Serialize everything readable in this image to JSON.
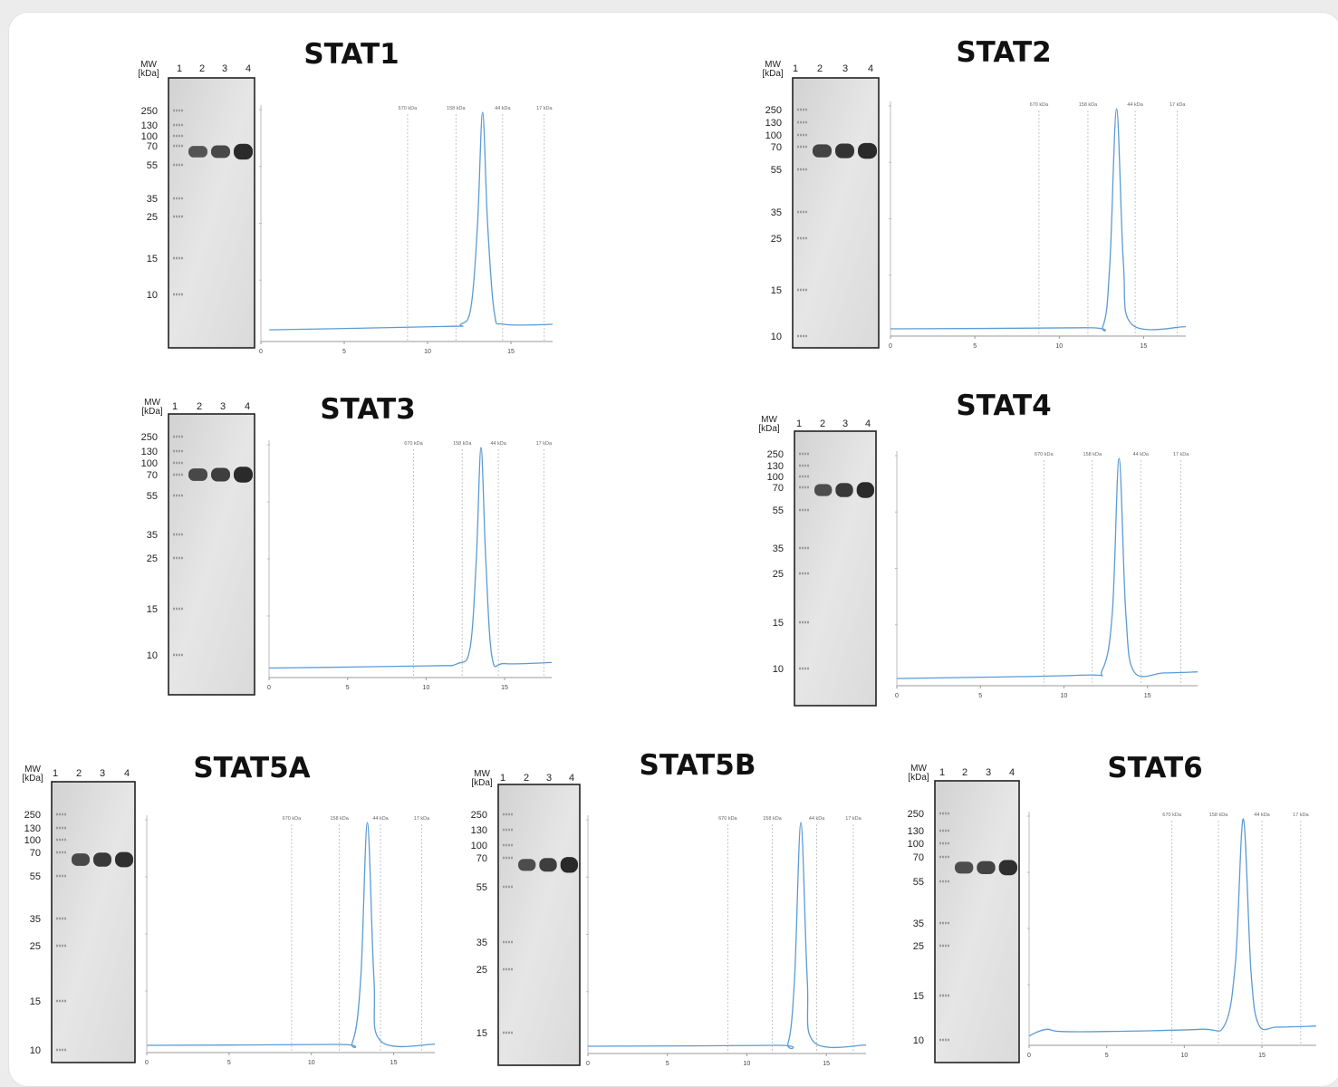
{
  "colors": {
    "trace": "#5b9bd5",
    "marker_line": "#9a9a9a",
    "gel_border": "#222222",
    "gel_bg": "#dcdcdc",
    "kda_label": "#c0504d",
    "card_bg": "#ffffff"
  },
  "gel_labels": {
    "mw": "MW",
    "kda": "[kDa]",
    "lanes": [
      "1",
      "2",
      "3",
      "4"
    ]
  },
  "chart_data": [
    {
      "type": "line",
      "title": "STAT1",
      "x_ticks": [
        "0",
        "5",
        "10",
        "15"
      ],
      "xlim": [
        0,
        17.5
      ],
      "markers": [
        {
          "label": "670 kDa",
          "x": 8.8
        },
        {
          "label": "158 kDa",
          "x": 11.7
        },
        {
          "label": "44 kDa",
          "x": 14.5
        },
        {
          "label": "17 kDa",
          "x": 17.0
        }
      ],
      "series": [
        {
          "points": [
            [
              0.5,
              0.02
            ],
            [
              11.0,
              0.035
            ],
            [
              12.0,
              0.045
            ],
            [
              12.6,
              0.12
            ],
            [
              13.0,
              0.5
            ],
            [
              13.3,
              1.0
            ],
            [
              13.6,
              0.5
            ],
            [
              14.0,
              0.1
            ],
            [
              14.6,
              0.045
            ],
            [
              17.5,
              0.045
            ]
          ]
        }
      ],
      "gel": {
        "ladder": [
          "250",
          "130",
          "100",
          "70",
          "55",
          "35",
          "25",
          "15",
          "10"
        ],
        "band_mw": 65,
        "band_intensity": [
          0.55,
          0.65,
          0.95
        ]
      }
    },
    {
      "type": "line",
      "title": "STAT2",
      "x_ticks": [
        "0",
        "5",
        "10",
        "15"
      ],
      "xlim": [
        0,
        17.5
      ],
      "markers": [
        {
          "label": "670 kDa",
          "x": 8.8
        },
        {
          "label": "158 kDa",
          "x": 11.7
        },
        {
          "label": "44 kDa",
          "x": 14.5
        },
        {
          "label": "17 kDa",
          "x": 17.0
        }
      ],
      "series": [
        {
          "points": [
            [
              0,
              0.0
            ],
            [
              11.5,
              0.005
            ],
            [
              12.6,
              0.015
            ],
            [
              13.0,
              0.3
            ],
            [
              13.4,
              1.0
            ],
            [
              13.8,
              0.3
            ],
            [
              14.3,
              0.02
            ],
            [
              17.5,
              0.01
            ]
          ]
        }
      ],
      "gel": {
        "ladder": [
          "250",
          "130",
          "100",
          "70",
          "55",
          "35",
          "25",
          "15",
          "10"
        ],
        "band_mw": 67,
        "band_intensity": [
          0.7,
          0.85,
          0.95
        ]
      }
    },
    {
      "type": "line",
      "title": "STAT3",
      "x_ticks": [
        "0",
        "5",
        "10",
        "15"
      ],
      "xlim": [
        0,
        18
      ],
      "markers": [
        {
          "label": "670 kDa",
          "x": 9.2
        },
        {
          "label": "158 kDa",
          "x": 12.3
        },
        {
          "label": "44 kDa",
          "x": 14.6
        },
        {
          "label": "17 kDa",
          "x": 17.5
        }
      ],
      "series": [
        {
          "points": [
            [
              0,
              0.01
            ],
            [
              10.0,
              0.02
            ],
            [
              12.0,
              0.03
            ],
            [
              12.8,
              0.1
            ],
            [
              13.2,
              0.5
            ],
            [
              13.5,
              1.0
            ],
            [
              13.8,
              0.5
            ],
            [
              14.2,
              0.06
            ],
            [
              15.0,
              0.03
            ],
            [
              18,
              0.035
            ]
          ]
        }
      ],
      "gel": {
        "ladder": [
          "250",
          "130",
          "100",
          "70",
          "55",
          "35",
          "25",
          "15",
          "10"
        ],
        "band_mw": 70,
        "band_intensity": [
          0.65,
          0.75,
          0.95
        ]
      }
    },
    {
      "type": "line",
      "title": "STAT4",
      "x_ticks": [
        "0",
        "5",
        "10",
        "15"
      ],
      "xlim": [
        0,
        18
      ],
      "markers": [
        {
          "label": "670 kDa",
          "x": 8.8
        },
        {
          "label": "158 kDa",
          "x": 11.7
        },
        {
          "label": "44 kDa",
          "x": 14.6
        },
        {
          "label": "17 kDa",
          "x": 17.0
        }
      ],
      "series": [
        {
          "points": [
            [
              0,
              0.0
            ],
            [
              11.0,
              0.015
            ],
            [
              12.3,
              0.04
            ],
            [
              12.9,
              0.3
            ],
            [
              13.3,
              1.0
            ],
            [
              13.7,
              0.3
            ],
            [
              14.2,
              0.03
            ],
            [
              16.0,
              0.025
            ],
            [
              18,
              0.03
            ]
          ]
        }
      ],
      "gel": {
        "ladder": [
          "250",
          "130",
          "100",
          "70",
          "55",
          "35",
          "25",
          "15",
          "10"
        ],
        "band_mw": 68,
        "band_intensity": [
          0.6,
          0.8,
          0.95
        ]
      }
    },
    {
      "type": "line",
      "title": "STAT5A",
      "x_ticks": [
        "0",
        "5",
        "10",
        "15"
      ],
      "xlim": [
        0,
        17.5
      ],
      "markers": [
        {
          "label": "670 kDa",
          "x": 8.8
        },
        {
          "label": "158 kDa",
          "x": 11.7
        },
        {
          "label": "44 kDa",
          "x": 14.2
        },
        {
          "label": "17 kDa",
          "x": 16.7
        }
      ],
      "series": [
        {
          "points": [
            [
              0,
              0.0
            ],
            [
              11.5,
              0.004
            ],
            [
              12.5,
              0.015
            ],
            [
              13.0,
              0.3
            ],
            [
              13.4,
              1.0
            ],
            [
              13.8,
              0.3
            ],
            [
              14.2,
              0.02
            ],
            [
              17.5,
              0.005
            ]
          ]
        }
      ],
      "gel": {
        "ladder": [
          "250",
          "130",
          "100",
          "70",
          "55",
          "35",
          "25",
          "15",
          "10"
        ],
        "band_mw": 65,
        "band_intensity": [
          0.65,
          0.8,
          0.9
        ]
      }
    },
    {
      "type": "line",
      "title": "STAT5B",
      "x_ticks": [
        "0",
        "5",
        "10",
        "15"
      ],
      "xlim": [
        0,
        17.5
      ],
      "markers": [
        {
          "label": "670 kDa",
          "x": 8.8
        },
        {
          "label": "158 kDa",
          "x": 11.6
        },
        {
          "label": "44 kDa",
          "x": 14.4
        },
        {
          "label": "17 kDa",
          "x": 16.7
        }
      ],
      "series": [
        {
          "points": [
            [
              0,
              0.0
            ],
            [
              11.8,
              0.004
            ],
            [
              12.6,
              0.015
            ],
            [
              13.0,
              0.3
            ],
            [
              13.4,
              1.0
            ],
            [
              13.8,
              0.3
            ],
            [
              14.2,
              0.02
            ],
            [
              17.5,
              0.005
            ]
          ]
        }
      ],
      "gel": {
        "ladder": [
          "250",
          "130",
          "100",
          "70",
          "55",
          "35",
          "25",
          "15"
        ],
        "band_mw": 66,
        "band_intensity": [
          0.6,
          0.75,
          0.95
        ]
      }
    },
    {
      "type": "line",
      "title": "STAT6",
      "x_ticks": [
        "0",
        "5",
        "10",
        "15"
      ],
      "xlim": [
        0,
        18.5
      ],
      "markers": [
        {
          "label": "670 kDa",
          "x": 9.2
        },
        {
          "label": "158 kDa",
          "x": 12.2
        },
        {
          "label": "44 kDa",
          "x": 15.0
        },
        {
          "label": "17 kDa",
          "x": 17.5
        }
      ],
      "series": [
        {
          "points": [
            [
              0,
              0.01
            ],
            [
              0.6,
              0.03
            ],
            [
              1.2,
              0.04
            ],
            [
              2.0,
              0.03
            ],
            [
              5.0,
              0.03
            ],
            [
              11.0,
              0.04
            ],
            [
              12.6,
              0.06
            ],
            [
              13.3,
              0.35
            ],
            [
              13.8,
              1.0
            ],
            [
              14.3,
              0.3
            ],
            [
              14.8,
              0.06
            ],
            [
              16.0,
              0.05
            ],
            [
              18.5,
              0.055
            ]
          ]
        }
      ],
      "gel": {
        "ladder": [
          "250",
          "130",
          "100",
          "70",
          "55",
          "35",
          "25",
          "15",
          "10"
        ],
        "band_mw": 63,
        "band_intensity": [
          0.6,
          0.7,
          0.9
        ]
      }
    }
  ]
}
